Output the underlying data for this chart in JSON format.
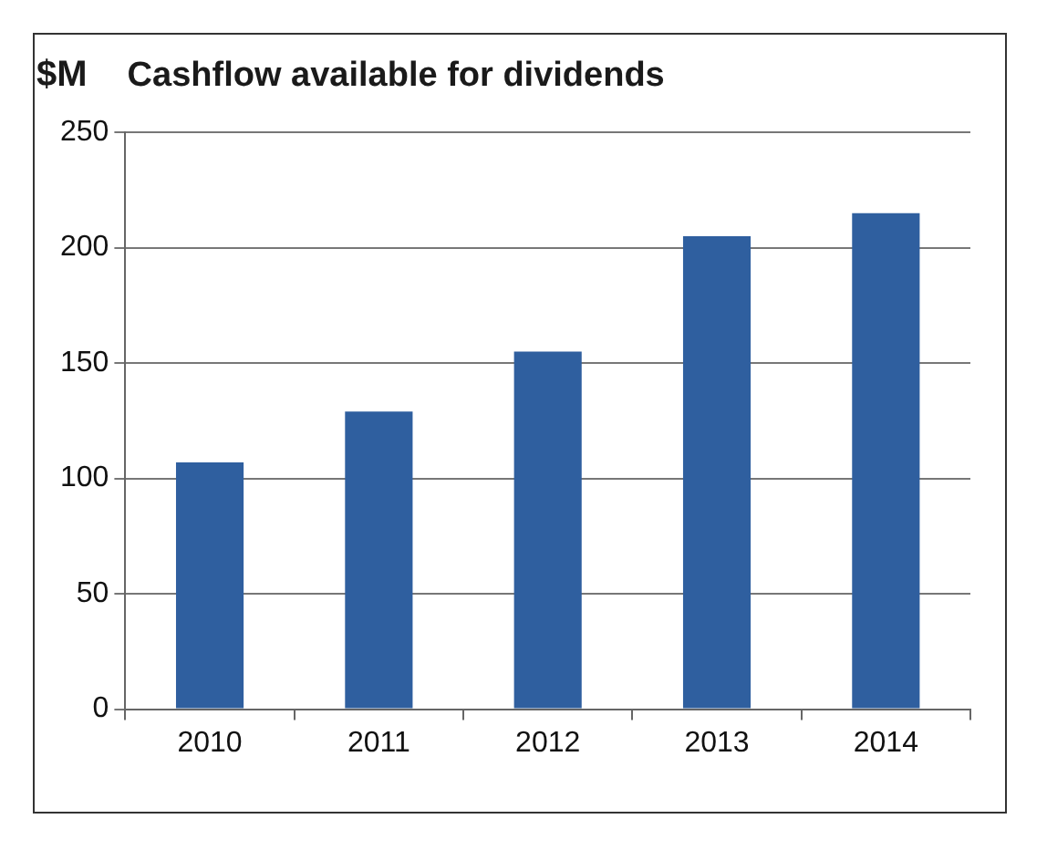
{
  "chart_data": {
    "type": "bar",
    "title": "Cashflow available for dividends",
    "ylabel": "$M",
    "categories": [
      "2010",
      "2011",
      "2012",
      "2013",
      "2014"
    ],
    "values": [
      107,
      129,
      155,
      205,
      215
    ],
    "color": "#2f5f9f",
    "ylim": [
      0,
      250
    ],
    "yticks": [
      0,
      50,
      100,
      150,
      200,
      250
    ],
    "grid": "y",
    "legend": false
  }
}
